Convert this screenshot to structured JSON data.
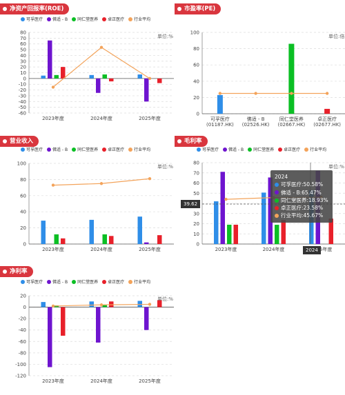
{
  "colors": {
    "kexue": "#2f8ee8",
    "qiaoyi": "#6e14cf",
    "tongren": "#0bbf24",
    "zhuozheng": "#e8202a",
    "avg": "#f3a35a",
    "badge": "#d9363e"
  },
  "legend": {
    "items": [
      {
        "label": "可孚医疗",
        "color": "#2f8ee8"
      },
      {
        "label": "佛适 - B",
        "color": "#6e14cf"
      },
      {
        "label": "同仁堂医养",
        "color": "#0bbf24"
      },
      {
        "label": "卓正医疗",
        "color": "#e8202a"
      },
      {
        "label": "行业平均",
        "color": "#f3a35a"
      }
    ]
  },
  "panels": {
    "roe": {
      "title": "净资产回报率(ROE)",
      "unit": "单位:%"
    },
    "pe": {
      "title": "市盈率(PE)",
      "unit": "单位:倍"
    },
    "revenue": {
      "title": "营业收入",
      "unit": "单位:%"
    },
    "gross": {
      "title": "毛利率",
      "unit": "单位:%"
    },
    "net": {
      "title": "净利率",
      "unit": "单位:%"
    }
  },
  "tooltip": {
    "title": "2024",
    "rows": [
      {
        "text": "可孚医疗:50.58%",
        "color": "#2f8ee8"
      },
      {
        "text": "佛适 - B:65.47%",
        "color": "#6e14cf"
      },
      {
        "text": "同仁堂医养:18.93%",
        "color": "#0bbf24"
      },
      {
        "text": "卓正医疗:23.58%",
        "color": "#e8202a"
      },
      {
        "text": "行业平均:45.67%",
        "color": "#f3a35a"
      }
    ],
    "y_pill": "39.62",
    "x_pill": "2024"
  },
  "chart_data": [
    {
      "id": "roe",
      "type": "bar",
      "title": "净资产回报率(ROE)",
      "categories": [
        "2023年度",
        "2024年度",
        "2025年度"
      ],
      "ylim": [
        -60,
        80
      ],
      "yticks": [
        -60,
        -50,
        -40,
        -30,
        -20,
        -10,
        0,
        10,
        20,
        30,
        40,
        50,
        60,
        70,
        80
      ],
      "series": [
        {
          "name": "可孚医疗",
          "type": "bar",
          "values": [
            5,
            6,
            7
          ]
        },
        {
          "name": "佛适 - B",
          "type": "bar",
          "values": [
            66,
            -25,
            -40
          ]
        },
        {
          "name": "同仁堂医养",
          "type": "bar",
          "values": [
            6,
            7,
            0
          ]
        },
        {
          "name": "卓正医疗",
          "type": "bar",
          "values": [
            20,
            -5,
            -8
          ]
        },
        {
          "name": "行业平均",
          "type": "line",
          "values": [
            -15,
            54,
            0
          ]
        }
      ]
    },
    {
      "id": "pe",
      "type": "bar",
      "title": "市盈率(PE)",
      "categories": [
        "可孚医疗\n(01187.HK)",
        "佛适 - B\n(02526.HK)",
        "同仁堂医养\n(02667.HK)",
        "卓正医疗\n(02677.HK)"
      ],
      "ylim": [
        0,
        100
      ],
      "yticks": [
        0,
        20,
        40,
        60,
        80,
        100
      ],
      "series": [
        {
          "name": "PE",
          "type": "bar",
          "values": [
            23,
            0,
            86,
            6
          ],
          "colors": [
            "#2f8ee8",
            "#6e14cf",
            "#0bbf24",
            "#e8202a"
          ]
        },
        {
          "name": "行业平均",
          "type": "line",
          "values": [
            25,
            25,
            25,
            25
          ]
        }
      ]
    },
    {
      "id": "revenue",
      "type": "bar",
      "title": "营业收入",
      "categories": [
        "2023年度",
        "2024年度",
        "2025年度"
      ],
      "ylim": [
        0,
        100
      ],
      "yticks": [
        0,
        20,
        40,
        60,
        80,
        100
      ],
      "series": [
        {
          "name": "可孚医疗",
          "type": "bar",
          "values": [
            29,
            30,
            34
          ]
        },
        {
          "name": "佛适 - B",
          "type": "bar",
          "values": [
            0,
            0,
            2
          ]
        },
        {
          "name": "同仁堂医养",
          "type": "bar",
          "values": [
            12,
            12,
            0
          ]
        },
        {
          "name": "卓正医疗",
          "type": "bar",
          "values": [
            7,
            10,
            11
          ]
        },
        {
          "name": "行业平均",
          "type": "line",
          "values": [
            73,
            75,
            81
          ]
        }
      ]
    },
    {
      "id": "gross",
      "type": "bar",
      "title": "毛利率",
      "categories": [
        "2023年度",
        "2024年度",
        "2025年度"
      ],
      "ylim": [
        0,
        80
      ],
      "yticks": [
        0,
        10,
        20,
        30,
        40,
        50,
        60,
        70,
        80
      ],
      "series": [
        {
          "name": "可孚医疗",
          "type": "bar",
          "values": [
            42,
            50.58,
            53
          ]
        },
        {
          "name": "佛适 - B",
          "type": "bar",
          "values": [
            71,
            65.47,
            72
          ]
        },
        {
          "name": "同仁堂医养",
          "type": "bar",
          "values": [
            19,
            18.93,
            0
          ]
        },
        {
          "name": "卓正医疗",
          "type": "bar",
          "values": [
            19,
            23.58,
            25
          ]
        },
        {
          "name": "行业平均",
          "type": "line",
          "values": [
            44,
            45.67,
            46
          ]
        }
      ]
    },
    {
      "id": "net",
      "type": "bar",
      "title": "净利率",
      "categories": [
        "2023年度",
        "2024年度",
        "2025年度"
      ],
      "ylim": [
        -120,
        20
      ],
      "yticks": [
        -120,
        -100,
        -80,
        -60,
        -40,
        -20,
        0,
        20
      ],
      "series": [
        {
          "name": "可孚医疗",
          "type": "bar",
          "values": [
            9,
            10,
            11
          ]
        },
        {
          "name": "佛适 - B",
          "type": "bar",
          "values": [
            -105,
            -62,
            -40
          ]
        },
        {
          "name": "同仁堂医养",
          "type": "bar",
          "values": [
            3,
            4,
            0
          ]
        },
        {
          "name": "卓正医疗",
          "type": "bar",
          "values": [
            -50,
            10,
            12
          ]
        },
        {
          "name": "行业平均",
          "type": "line",
          "values": [
            2,
            4,
            5
          ]
        }
      ]
    }
  ]
}
